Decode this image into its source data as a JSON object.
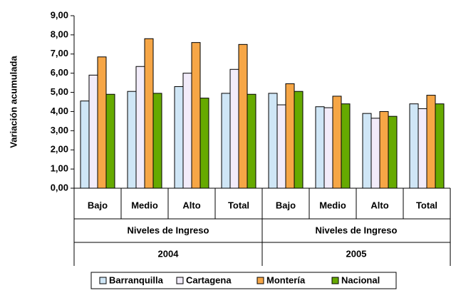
{
  "chart_data": {
    "type": "bar",
    "y_label": "Variación acumulada",
    "categories": [
      "Bajo",
      "Medio",
      "Alto",
      "Total",
      "Bajo",
      "Medio",
      "Alto",
      "Total"
    ],
    "groups": [
      {
        "label": "Niveles de Ingreso",
        "year": "2004"
      },
      {
        "label": "Niveles de Ingreso",
        "year": "2005"
      }
    ],
    "series": [
      {
        "name": "Barranquilla",
        "color": "#cfe6f6",
        "values": [
          4.55,
          5.05,
          5.3,
          4.95,
          4.95,
          4.25,
          3.9,
          4.4
        ]
      },
      {
        "name": "Cartagena",
        "color": "#f2ecfa",
        "values": [
          5.9,
          6.35,
          6.0,
          6.2,
          4.35,
          4.2,
          3.65,
          4.15
        ]
      },
      {
        "name": "Montería",
        "color": "#f6a646",
        "values": [
          6.85,
          7.8,
          7.6,
          7.5,
          5.45,
          4.8,
          4.0,
          4.85
        ]
      },
      {
        "name": "Nacional",
        "color": "#66aa00",
        "values": [
          4.9,
          4.95,
          4.7,
          4.9,
          5.05,
          4.4,
          3.75,
          4.4
        ]
      }
    ],
    "ylim": [
      0,
      9
    ],
    "yticks": [
      {
        "value": 0,
        "label": "0,00"
      },
      {
        "value": 1,
        "label": "1,00"
      },
      {
        "value": 2,
        "label": "2,00"
      },
      {
        "value": 3,
        "label": "3,00"
      },
      {
        "value": 4,
        "label": "4,00"
      },
      {
        "value": 5,
        "label": "5,00"
      },
      {
        "value": 6,
        "label": "6,00"
      },
      {
        "value": 7,
        "label": "7,00"
      },
      {
        "value": 8,
        "label": "8,00"
      },
      {
        "value": 9,
        "label": "9,00"
      }
    ],
    "legend": "bottom"
  }
}
